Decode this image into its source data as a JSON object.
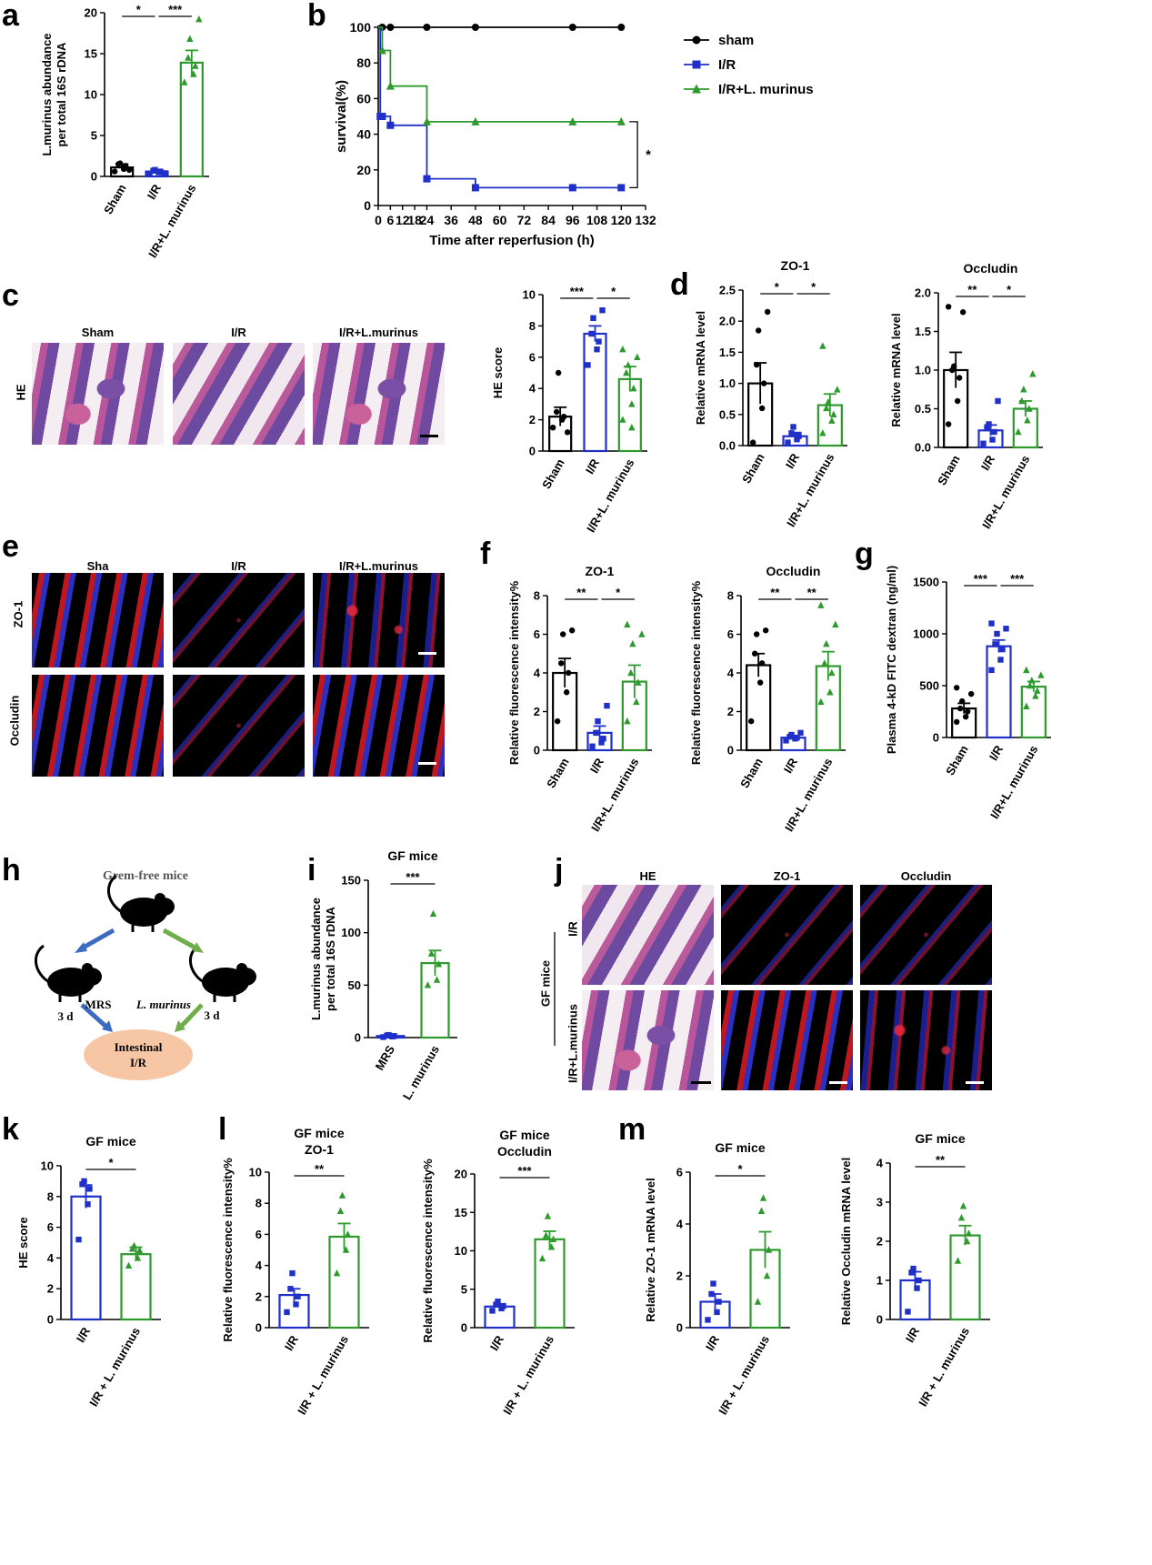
{
  "panel_labels": [
    "a",
    "b",
    "c",
    "d",
    "e",
    "f",
    "g",
    "h",
    "i",
    "j",
    "k",
    "l",
    "m"
  ],
  "colors": {
    "black": "#000000",
    "blue": "#1f2fc8",
    "green": "#2e9a2e"
  },
  "photo_labels": {
    "c": {
      "row": "HE",
      "cols": [
        "Sham",
        "I/R",
        "I/R+L.murinus"
      ]
    },
    "e": {
      "rows": [
        "ZO-1",
        "Occludin"
      ],
      "cols": [
        "Sha",
        "I/R",
        "I/R+L.murinus"
      ]
    },
    "j": {
      "cols": [
        "HE",
        "ZO-1",
        "Occludin"
      ],
      "rows": [
        "I/R",
        "I/R+L.murinus"
      ],
      "group": "GF mice"
    }
  },
  "schematic": {
    "title": "Grem-free mice",
    "left_label": "MRS",
    "right_label": "L. murinus",
    "left_days": "3 d",
    "right_days": "3 d",
    "target_line1": "Intestinal",
    "target_line2": "I/R"
  },
  "chart_data": [
    {
      "id": "a",
      "type": "bar",
      "categories": [
        "Sham",
        "I/R",
        "I/R+L. murinus"
      ],
      "colors": [
        "#000000",
        "#1f2fc8",
        "#2e9a2e"
      ],
      "values": [
        1.1,
        0.6,
        13.9
      ],
      "errors": [
        0.4,
        0.2,
        1.5
      ],
      "points": [
        [
          0.6,
          0.9,
          1.3,
          1.5,
          1.6,
          0.8
        ],
        [
          0.3,
          0.5,
          0.6,
          0.7,
          0.8,
          0.4
        ],
        [
          11.5,
          12.5,
          13.5,
          14.5,
          16.8,
          19.2
        ]
      ],
      "ylabel": "L.murinus abundance\nper total 16S rDNA",
      "ylim": [
        0,
        20
      ],
      "yticks": [
        0,
        5,
        10,
        15,
        20
      ],
      "sig": [
        {
          "from": 0,
          "to": 1,
          "label": "*"
        },
        {
          "from": 1,
          "to": 2,
          "label": "***"
        }
      ]
    },
    {
      "id": "b",
      "type": "line",
      "xlabel": "Time after reperfusion (h)",
      "ylabel": "survival(%)",
      "xlim": [
        0,
        132
      ],
      "ylim": [
        0,
        100
      ],
      "xticks": [
        0,
        6,
        12,
        18,
        24,
        36,
        48,
        60,
        72,
        84,
        96,
        108,
        120,
        132
      ],
      "yticks": [
        0,
        20,
        40,
        60,
        80,
        100
      ],
      "series": [
        {
          "name": "sham",
          "color": "#000000",
          "marker": "circle",
          "x": [
            0,
            2,
            6,
            24,
            48,
            96,
            120
          ],
          "y": [
            100,
            100,
            100,
            100,
            100,
            100,
            100
          ]
        },
        {
          "name": "I/R",
          "color": "#1f2fc8",
          "marker": "square",
          "x": [
            0,
            1,
            2,
            6,
            24,
            48,
            96,
            120
          ],
          "y": [
            100,
            50,
            50,
            45,
            15,
            10,
            10,
            10
          ]
        },
        {
          "name": "I/R+L. murinus",
          "color": "#2e9a2e",
          "marker": "triangle",
          "x": [
            0,
            2,
            6,
            24,
            48,
            96,
            120
          ],
          "y": [
            100,
            87,
            67,
            47,
            47,
            47,
            47
          ]
        }
      ],
      "sig_label": "*"
    },
    {
      "id": "c",
      "type": "bar",
      "categories": [
        "Sham",
        "I/R",
        "I/R+L. murinus"
      ],
      "colors": [
        "#000000",
        "#1f2fc8",
        "#2e9a2e"
      ],
      "values": [
        2.2,
        7.5,
        4.6
      ],
      "errors": [
        0.6,
        0.5,
        0.8
      ],
      "points": [
        [
          1.5,
          2.0,
          2.2,
          2.5,
          5.0,
          1.2
        ],
        [
          5.5,
          6.5,
          7.0,
          7.5,
          8.5,
          9.0
        ],
        [
          2.0,
          3.0,
          4.0,
          5.0,
          5.5,
          6.0,
          6.5,
          1.5
        ]
      ],
      "ylabel": "HE score",
      "ylim": [
        0,
        10
      ],
      "yticks": [
        0,
        2,
        4,
        6,
        8,
        10
      ],
      "sig": [
        {
          "from": 0,
          "to": 1,
          "label": "***"
        },
        {
          "from": 1,
          "to": 2,
          "label": "*"
        }
      ]
    },
    {
      "id": "d1",
      "type": "bar",
      "title": "ZO-1",
      "categories": [
        "Sham",
        "I/R",
        "I/R+L. murinus"
      ],
      "colors": [
        "#000000",
        "#1f2fc8",
        "#2e9a2e"
      ],
      "values": [
        1.0,
        0.15,
        0.65
      ],
      "errors": [
        0.33,
        0.06,
        0.18
      ],
      "points": [
        [
          0.05,
          0.6,
          1.0,
          1.3,
          1.85,
          2.15
        ],
        [
          0.05,
          0.1,
          0.15,
          0.2,
          0.3
        ],
        [
          0.2,
          0.4,
          0.5,
          0.6,
          0.7,
          0.9,
          1.6
        ]
      ],
      "ylabel": "Relative mRNA level",
      "ylim": [
        0,
        2.5
      ],
      "yticks": [
        0.0,
        0.5,
        1.0,
        1.5,
        2.0,
        2.5
      ],
      "sig": [
        {
          "from": 0,
          "to": 1,
          "label": "*"
        },
        {
          "from": 1,
          "to": 2,
          "label": "*"
        }
      ]
    },
    {
      "id": "d2",
      "type": "bar",
      "title": "Occludin",
      "categories": [
        "Sham",
        "I/R",
        "I/R+L. murinus"
      ],
      "colors": [
        "#000000",
        "#1f2fc8",
        "#2e9a2e"
      ],
      "values": [
        1.0,
        0.22,
        0.5
      ],
      "errors": [
        0.23,
        0.07,
        0.1
      ],
      "points": [
        [
          0.3,
          0.6,
          0.9,
          1.0,
          1.05,
          1.75,
          1.82
        ],
        [
          0.05,
          0.1,
          0.2,
          0.25,
          0.3,
          0.6
        ],
        [
          0.2,
          0.35,
          0.5,
          0.6,
          0.75,
          0.95
        ]
      ],
      "ylabel": "Relative mRNA level",
      "ylim": [
        0,
        2.0
      ],
      "yticks": [
        0.0,
        0.5,
        1.0,
        1.5,
        2.0
      ],
      "sig": [
        {
          "from": 0,
          "to": 1,
          "label": "**"
        },
        {
          "from": 1,
          "to": 2,
          "label": "*"
        }
      ]
    },
    {
      "id": "f1",
      "type": "bar",
      "title": "ZO-1",
      "categories": [
        "Sham",
        "I/R",
        "I/R+L. murinus"
      ],
      "colors": [
        "#000000",
        "#1f2fc8",
        "#2e9a2e"
      ],
      "values": [
        4.0,
        0.9,
        3.55
      ],
      "errors": [
        0.75,
        0.35,
        0.85
      ],
      "points": [
        [
          1.5,
          3.0,
          4.0,
          4.5,
          6.0,
          6.2
        ],
        [
          0.2,
          0.4,
          0.6,
          0.9,
          1.5,
          2.3
        ],
        [
          1.5,
          2.5,
          3.5,
          4.0,
          5.5,
          6.0,
          6.5
        ]
      ],
      "ylabel": "Relative fluorescence intensity%",
      "ylim": [
        0,
        8
      ],
      "yticks": [
        0,
        2,
        4,
        6,
        8
      ],
      "sig": [
        {
          "from": 0,
          "to": 1,
          "label": "**"
        },
        {
          "from": 1,
          "to": 2,
          "label": "*"
        }
      ]
    },
    {
      "id": "f2",
      "type": "bar",
      "title": "Occludin",
      "categories": [
        "Sham",
        "I/R",
        "I/R+L. murinus"
      ],
      "colors": [
        "#000000",
        "#1f2fc8",
        "#2e9a2e"
      ],
      "values": [
        4.4,
        0.65,
        4.35
      ],
      "errors": [
        0.6,
        0.1,
        0.75
      ],
      "points": [
        [
          1.5,
          3.5,
          4.5,
          5.0,
          6.0,
          6.2
        ],
        [
          0.5,
          0.6,
          0.65,
          0.7,
          0.8,
          0.9
        ],
        [
          2.5,
          3.0,
          4.0,
          4.5,
          5.5,
          6.5,
          7.5
        ]
      ],
      "ylabel": "Relative fluorescence intensity%",
      "ylim": [
        0,
        8
      ],
      "yticks": [
        0,
        2,
        4,
        6,
        8
      ],
      "sig": [
        {
          "from": 0,
          "to": 1,
          "label": "**"
        },
        {
          "from": 1,
          "to": 2,
          "label": "**"
        }
      ]
    },
    {
      "id": "g",
      "type": "bar",
      "categories": [
        "Sham",
        "I/R",
        "I/R+L. murinus"
      ],
      "colors": [
        "#000000",
        "#1f2fc8",
        "#2e9a2e"
      ],
      "values": [
        280,
        880,
        490
      ],
      "errors": [
        50,
        60,
        50
      ],
      "points": [
        [
          150,
          200,
          250,
          280,
          350,
          420,
          480
        ],
        [
          650,
          750,
          850,
          900,
          1000,
          1050,
          1100
        ],
        [
          300,
          400,
          450,
          500,
          550,
          600,
          650
        ]
      ],
      "ylabel": "Plasma 4-kD FITC dextran (ng/ml)",
      "ylim": [
        0,
        1500
      ],
      "yticks": [
        0,
        500,
        1000,
        1500
      ],
      "sig": [
        {
          "from": 0,
          "to": 1,
          "label": "***"
        },
        {
          "from": 1,
          "to": 2,
          "label": "***"
        }
      ]
    },
    {
      "id": "i",
      "type": "bar",
      "title": "GF mice",
      "categories": [
        "MRS",
        "L. murinus"
      ],
      "colors": [
        "#1f2fc8",
        "#2e9a2e"
      ],
      "values": [
        1.5,
        71
      ],
      "errors": [
        0.6,
        12
      ],
      "points": [
        [
          0.5,
          1.0,
          1.5,
          2.0,
          2.5
        ],
        [
          50,
          55,
          70,
          80,
          118
        ]
      ],
      "ylabel": "L.murinus abundance\nper total 16S rDNA",
      "ylim": [
        0,
        150
      ],
      "yticks": [
        0,
        50,
        100,
        150
      ],
      "sig": [
        {
          "from": 0,
          "to": 1,
          "label": "***"
        }
      ]
    },
    {
      "id": "k",
      "type": "bar",
      "title": "GF mice",
      "categories": [
        "I/R",
        "I/R + L. murinus"
      ],
      "colors": [
        "#1f2fc8",
        "#2e9a2e"
      ],
      "values": [
        8.0,
        4.25
      ],
      "errors": [
        0.75,
        0.45
      ],
      "points": [
        [
          5.2,
          7.5,
          8.5,
          8.8,
          9.0
        ],
        [
          3.5,
          4.0,
          4.5,
          4.6,
          4.8
        ]
      ],
      "ylabel": "HE score",
      "ylim": [
        0,
        10
      ],
      "yticks": [
        0,
        2,
        4,
        6,
        8,
        10
      ],
      "sig": [
        {
          "from": 0,
          "to": 1,
          "label": "*"
        }
      ]
    },
    {
      "id": "l1",
      "type": "bar",
      "title": "GF mice",
      "subtitle": "ZO-1",
      "categories": [
        "I/R",
        "I/R + L. murinus"
      ],
      "colors": [
        "#1f2fc8",
        "#2e9a2e"
      ],
      "values": [
        2.1,
        5.85
      ],
      "errors": [
        0.4,
        0.85
      ],
      "points": [
        [
          1.0,
          1.5,
          2.0,
          2.5,
          3.5
        ],
        [
          3.5,
          5.0,
          6.0,
          7.5,
          8.5
        ]
      ],
      "ylabel": "Relative fluorescence intensity%",
      "ylim": [
        0,
        10
      ],
      "yticks": [
        0,
        2,
        4,
        6,
        8,
        10
      ],
      "sig": [
        {
          "from": 0,
          "to": 1,
          "label": "**"
        }
      ]
    },
    {
      "id": "l2",
      "type": "bar",
      "title": "GF mice",
      "subtitle": "Occludin",
      "categories": [
        "I/R",
        "I/R + L. murinus"
      ],
      "colors": [
        "#1f2fc8",
        "#2e9a2e"
      ],
      "values": [
        2.75,
        11.5
      ],
      "errors": [
        0.35,
        1.05
      ],
      "points": [
        [
          2.2,
          2.5,
          2.8,
          3.0,
          3.4
        ],
        [
          9.0,
          10.5,
          11.5,
          12.0,
          14.5
        ]
      ],
      "ylabel": "Relative fluorescence intensity%",
      "ylim": [
        0,
        20
      ],
      "yticks": [
        0,
        5,
        10,
        15,
        20
      ],
      "sig": [
        {
          "from": 0,
          "to": 1,
          "label": "***"
        }
      ]
    },
    {
      "id": "m1",
      "type": "bar",
      "title": "GF mice",
      "categories": [
        "I/R",
        "I/R + L. murinus"
      ],
      "colors": [
        "#1f2fc8",
        "#2e9a2e"
      ],
      "values": [
        1.0,
        3.0
      ],
      "errors": [
        0.3,
        0.7
      ],
      "points": [
        [
          0.3,
          0.6,
          1.0,
          1.3,
          1.7
        ],
        [
          1.0,
          2.0,
          3.0,
          4.5,
          5.0
        ]
      ],
      "ylabel": "Relative ZO-1 mRNA level",
      "ylim": [
        0,
        6
      ],
      "yticks": [
        0,
        2,
        4,
        6
      ],
      "sig": [
        {
          "from": 0,
          "to": 1,
          "label": "*"
        }
      ]
    },
    {
      "id": "m2",
      "type": "bar",
      "title": "GF mice",
      "categories": [
        "I/R",
        "I/R + L. murinus"
      ],
      "colors": [
        "#1f2fc8",
        "#2e9a2e"
      ],
      "values": [
        1.0,
        2.15
      ],
      "errors": [
        0.22,
        0.25
      ],
      "points": [
        [
          0.2,
          0.8,
          1.0,
          1.2,
          1.3
        ],
        [
          1.5,
          2.0,
          2.2,
          2.6,
          2.9
        ]
      ],
      "ylabel": "Relative Occludin mRNA level",
      "ylim": [
        0,
        4
      ],
      "yticks": [
        0,
        1,
        2,
        3,
        4
      ],
      "sig": [
        {
          "from": 0,
          "to": 1,
          "label": "**"
        }
      ]
    }
  ]
}
